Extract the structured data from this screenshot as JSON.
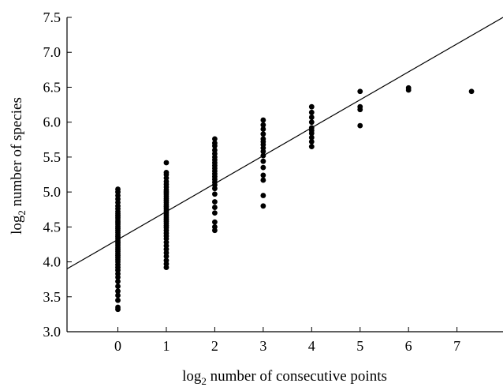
{
  "chart_data": {
    "type": "scatter",
    "title": "",
    "xlabel": "number of consecutive points",
    "ylabel": "number of species",
    "axis_prefix": "log",
    "axis_subscript": "2",
    "xlim": [
      -1.05,
      7.95
    ],
    "ylim": [
      3.0,
      7.5
    ],
    "x_ticks": [
      0,
      1,
      2,
      3,
      4,
      5,
      6,
      7
    ],
    "y_ticks": [
      "3.0",
      "3.5",
      "4.0",
      "4.5",
      "5.0",
      "5.5",
      "6.0",
      "6.5",
      "7.0",
      "7.5"
    ],
    "grid": false,
    "legend": "none",
    "marker_color": "#000000",
    "fit_line": {
      "x": [
        -1.05,
        7.95
      ],
      "y": [
        3.9,
        7.5
      ]
    },
    "points": [
      [
        0,
        3.32
      ],
      [
        0,
        3.35
      ],
      [
        0,
        3.45
      ],
      [
        0,
        3.52
      ],
      [
        0,
        3.58
      ],
      [
        0,
        3.65
      ],
      [
        0,
        3.72
      ],
      [
        0,
        3.78
      ],
      [
        0,
        3.83
      ],
      [
        0,
        3.88
      ],
      [
        0,
        3.92
      ],
      [
        0,
        3.96
      ],
      [
        0,
        4.0
      ],
      [
        0,
        4.03
      ],
      [
        0,
        4.06
      ],
      [
        0,
        4.09
      ],
      [
        0,
        4.12
      ],
      [
        0,
        4.15
      ],
      [
        0,
        4.18
      ],
      [
        0,
        4.21
      ],
      [
        0,
        4.24
      ],
      [
        0,
        4.27
      ],
      [
        0,
        4.3
      ],
      [
        0,
        4.33
      ],
      [
        0,
        4.36
      ],
      [
        0,
        4.39
      ],
      [
        0,
        4.42
      ],
      [
        0,
        4.45
      ],
      [
        0,
        4.48
      ],
      [
        0,
        4.51
      ],
      [
        0,
        4.54
      ],
      [
        0,
        4.57
      ],
      [
        0,
        4.6
      ],
      [
        0,
        4.63
      ],
      [
        0,
        4.66
      ],
      [
        0,
        4.69
      ],
      [
        0,
        4.72
      ],
      [
        0,
        4.76
      ],
      [
        0,
        4.8
      ],
      [
        0,
        4.85
      ],
      [
        0,
        4.9
      ],
      [
        0,
        4.95
      ],
      [
        0,
        5.0
      ],
      [
        0,
        5.04
      ],
      [
        1,
        3.92
      ],
      [
        1,
        3.97
      ],
      [
        1,
        4.02
      ],
      [
        1,
        4.08
      ],
      [
        1,
        4.13
      ],
      [
        1,
        4.18
      ],
      [
        1,
        4.23
      ],
      [
        1,
        4.28
      ],
      [
        1,
        4.33
      ],
      [
        1,
        4.37
      ],
      [
        1,
        4.41
      ],
      [
        1,
        4.45
      ],
      [
        1,
        4.49
      ],
      [
        1,
        4.52
      ],
      [
        1,
        4.55
      ],
      [
        1,
        4.58
      ],
      [
        1,
        4.61
      ],
      [
        1,
        4.64
      ],
      [
        1,
        4.67
      ],
      [
        1,
        4.7
      ],
      [
        1,
        4.73
      ],
      [
        1,
        4.76
      ],
      [
        1,
        4.79
      ],
      [
        1,
        4.82
      ],
      [
        1,
        4.85
      ],
      [
        1,
        4.88
      ],
      [
        1,
        4.91
      ],
      [
        1,
        4.94
      ],
      [
        1,
        4.97
      ],
      [
        1,
        5.0
      ],
      [
        1,
        5.03
      ],
      [
        1,
        5.07
      ],
      [
        1,
        5.11
      ],
      [
        1,
        5.15
      ],
      [
        1,
        5.2
      ],
      [
        1,
        5.25
      ],
      [
        1,
        5.28
      ],
      [
        1,
        5.42
      ],
      [
        2,
        4.45
      ],
      [
        2,
        4.5
      ],
      [
        2,
        4.57
      ],
      [
        2,
        4.7
      ],
      [
        2,
        4.78
      ],
      [
        2,
        4.86
      ],
      [
        2,
        4.97
      ],
      [
        2,
        5.05
      ],
      [
        2,
        5.1
      ],
      [
        2,
        5.14
      ],
      [
        2,
        5.18
      ],
      [
        2,
        5.22
      ],
      [
        2,
        5.26
      ],
      [
        2,
        5.3
      ],
      [
        2,
        5.34
      ],
      [
        2,
        5.38
      ],
      [
        2,
        5.42
      ],
      [
        2,
        5.46
      ],
      [
        2,
        5.5
      ],
      [
        2,
        5.55
      ],
      [
        2,
        5.6
      ],
      [
        2,
        5.66
      ],
      [
        2,
        5.7
      ],
      [
        2,
        5.76
      ],
      [
        3,
        4.8
      ],
      [
        3,
        4.95
      ],
      [
        3,
        5.17
      ],
      [
        3,
        5.24
      ],
      [
        3,
        5.35
      ],
      [
        3,
        5.44
      ],
      [
        3,
        5.52
      ],
      [
        3,
        5.58
      ],
      [
        3,
        5.63
      ],
      [
        3,
        5.68
      ],
      [
        3,
        5.72
      ],
      [
        3,
        5.76
      ],
      [
        3,
        5.83
      ],
      [
        3,
        5.9
      ],
      [
        3,
        5.96
      ],
      [
        3,
        6.03
      ],
      [
        4,
        5.65
      ],
      [
        4,
        5.72
      ],
      [
        4,
        5.78
      ],
      [
        4,
        5.84
      ],
      [
        4,
        5.88
      ],
      [
        4,
        5.92
      ],
      [
        4,
        6.0
      ],
      [
        4,
        6.07
      ],
      [
        4,
        6.14
      ],
      [
        4,
        6.22
      ],
      [
        5,
        5.95
      ],
      [
        5,
        6.18
      ],
      [
        5,
        6.22
      ],
      [
        5,
        6.44
      ],
      [
        6,
        6.46
      ],
      [
        6,
        6.49
      ],
      [
        7.3,
        6.44
      ]
    ]
  }
}
